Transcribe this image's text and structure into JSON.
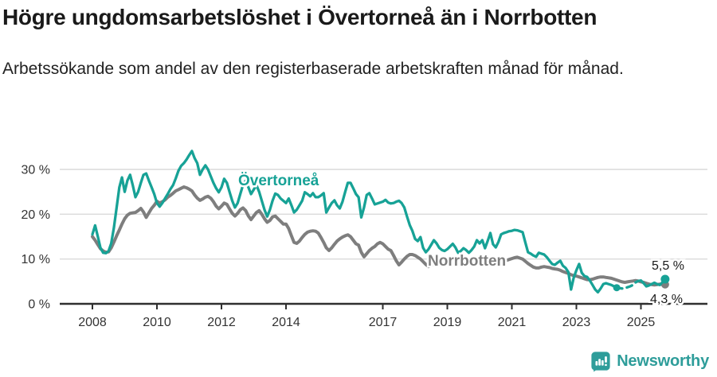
{
  "header": {
    "title": "Högre ungdomsarbetslöshet i Övertorneå än i Norrbotten",
    "subtitle": "Arbetssökande som andel av den registerbaserade arbetskraften månad för månad."
  },
  "logo": {
    "label": "Newsworthy",
    "color": "#2e9d9a",
    "icon": "newsworthy-speech-bubble-bar-chart-icon"
  },
  "colors": {
    "overtornea": "#17a296",
    "norrbotten": "#7e7e7e",
    "grid": "#dadada",
    "axis": "#2f2f2f",
    "tick_text": "#333333"
  },
  "chart_data": {
    "type": "line",
    "title": "Högre ungdomsarbetslöshet i Övertorneå än i Norrbotten",
    "xlabel": "",
    "ylabel": "",
    "unit": "%",
    "x_start": {
      "year": 2008,
      "month": 1
    },
    "x_end": {
      "year": 2025,
      "month": 10
    },
    "ylim": [
      0,
      35
    ],
    "grid": "horizontal",
    "legend_position": "inline-labels",
    "y_ticks": [
      {
        "value": 0,
        "label": "0 %"
      },
      {
        "value": 10,
        "label": "10 %"
      },
      {
        "value": 20,
        "label": "20 %"
      },
      {
        "value": 30,
        "label": "30 %"
      }
    ],
    "x_ticks": [
      {
        "year": 2008,
        "label": "2008"
      },
      {
        "year": 2010,
        "label": "2010"
      },
      {
        "year": 2012,
        "label": "2012"
      },
      {
        "year": 2014,
        "label": "2014"
      },
      {
        "year": 2017,
        "label": "2017"
      },
      {
        "year": 2019,
        "label": "2019"
      },
      {
        "year": 2021,
        "label": "2021"
      },
      {
        "year": 2023,
        "label": "2023"
      },
      {
        "year": 2025,
        "label": "2025"
      }
    ],
    "series": [
      {
        "name": "Norrbotten",
        "color": "#7e7e7e",
        "line_width": 4,
        "end_label": "4,3 %",
        "end_value": 4.3,
        "values": [
          15.0,
          14.2,
          13.2,
          12.3,
          11.8,
          11.5,
          11.6,
          12.5,
          13.8,
          15.2,
          16.5,
          17.8,
          19.0,
          19.8,
          20.2,
          20.3,
          20.4,
          20.8,
          21.3,
          20.5,
          19.3,
          20.3,
          21.3,
          22.0,
          22.9,
          22.5,
          22.8,
          23.2,
          23.8,
          24.2,
          24.7,
          25.2,
          25.5,
          25.8,
          26.1,
          25.9,
          25.6,
          25.2,
          24.3,
          23.6,
          23.1,
          23.4,
          23.8,
          24.0,
          23.6,
          22.8,
          21.8,
          21.2,
          21.8,
          22.5,
          22.2,
          21.2,
          20.2,
          19.6,
          20.2,
          21.0,
          21.4,
          20.8,
          19.6,
          18.8,
          19.6,
          20.4,
          20.8,
          20.0,
          19.0,
          18.2,
          18.6,
          19.4,
          19.6,
          19.0,
          18.4,
          17.8,
          17.8,
          16.8,
          15.2,
          13.7,
          13.5,
          14.0,
          14.8,
          15.5,
          16.0,
          16.2,
          16.3,
          16.2,
          15.8,
          14.8,
          13.7,
          12.5,
          11.9,
          12.5,
          13.3,
          14.0,
          14.5,
          14.9,
          15.2,
          15.4,
          15.0,
          14.2,
          13.4,
          13.1,
          11.5,
          10.5,
          11.2,
          11.9,
          12.4,
          12.8,
          13.4,
          13.7,
          13.4,
          12.8,
          12.2,
          11.9,
          10.8,
          9.6,
          8.7,
          9.3,
          10.0,
          10.6,
          11.0,
          11.0,
          10.8,
          10.4,
          10.0,
          9.4,
          8.8,
          8.3,
          8.6,
          9.1,
          9.5,
          9.8,
          10.0,
          9.8,
          9.6,
          9.4,
          9.2,
          9.0,
          8.8,
          8.7,
          8.8,
          9.0,
          9.2,
          9.3,
          9.4,
          9.5,
          9.6,
          9.5,
          9.4,
          10.1,
          10.3,
          10.2,
          10.0,
          9.8,
          9.7,
          9.6,
          9.7,
          9.9,
          10.1,
          10.3,
          10.4,
          10.2,
          10.0,
          9.5,
          9.0,
          8.6,
          8.2,
          8.0,
          8.0,
          8.2,
          8.3,
          8.2,
          8.1,
          7.9,
          7.8,
          7.7,
          7.5,
          7.2,
          7.0,
          6.8,
          6.5,
          6.3,
          6.2,
          6.0,
          5.8,
          5.6,
          5.4,
          5.4,
          5.5,
          5.7,
          5.9,
          6.0,
          6.0,
          5.9,
          5.8,
          5.7,
          5.5,
          5.3,
          5.1,
          4.9,
          4.8,
          4.9,
          5.0,
          5.1,
          5.2,
          5.1,
          4.9,
          4.8,
          4.6,
          4.4,
          4.3,
          4.2,
          4.3,
          4.4,
          4.3,
          4.3
        ]
      },
      {
        "name": "Övertorneå",
        "color": "#17a296",
        "line_width": 3.3,
        "end_label": "5,5 %",
        "end_value": 5.5,
        "dashed_range": [
          195,
          202
        ],
        "marker_index": 195,
        "values": [
          15.5,
          17.5,
          15.0,
          12.5,
          11.4,
          11.3,
          11.8,
          13.5,
          17.0,
          21.5,
          26.0,
          28.2,
          25.0,
          27.5,
          28.8,
          26.5,
          23.8,
          25.0,
          27.0,
          28.8,
          29.1,
          27.5,
          26.0,
          24.5,
          22.5,
          21.7,
          22.5,
          23.5,
          24.5,
          25.6,
          26.5,
          28.0,
          29.7,
          30.8,
          31.4,
          32.2,
          33.2,
          34.1,
          32.5,
          31.4,
          28.8,
          30.0,
          30.9,
          30.0,
          28.5,
          27.0,
          25.8,
          24.9,
          26.0,
          27.9,
          27.0,
          25.0,
          23.0,
          21.5,
          22.5,
          24.5,
          26.5,
          27.5,
          26.0,
          24.5,
          25.5,
          26.5,
          25.0,
          23.0,
          21.0,
          19.5,
          21.0,
          23.0,
          24.6,
          24.3,
          23.5,
          23.0,
          22.5,
          23.5,
          22.0,
          20.4,
          21.0,
          22.0,
          23.0,
          24.9,
          24.5,
          24.0,
          24.7,
          23.8,
          23.8,
          24.2,
          24.7,
          20.4,
          21.5,
          22.5,
          23.1,
          22.0,
          21.3,
          22.8,
          25.0,
          27.0,
          27.0,
          25.8,
          24.5,
          23.8,
          19.3,
          21.5,
          24.3,
          24.7,
          23.5,
          22.2,
          22.4,
          22.6,
          22.8,
          23.2,
          22.6,
          22.4,
          22.5,
          22.8,
          23.0,
          22.5,
          21.5,
          19.5,
          17.6,
          16.3,
          14.5,
          14.0,
          14.9,
          12.5,
          11.5,
          12.2,
          13.2,
          14.2,
          13.5,
          12.5,
          12.0,
          11.8,
          12.2,
          12.8,
          13.4,
          12.6,
          11.4,
          11.8,
          12.4,
          12.0,
          11.4,
          12.0,
          12.8,
          14.2,
          13.5,
          14.2,
          12.4,
          14.0,
          15.8,
          13.3,
          12.6,
          13.8,
          15.5,
          15.8,
          16.0,
          16.2,
          16.3,
          16.5,
          16.4,
          16.2,
          16.0,
          13.7,
          11.5,
          11.2,
          10.8,
          10.5,
          11.4,
          11.2,
          11.0,
          10.4,
          9.6,
          8.9,
          8.7,
          9.2,
          9.6,
          8.5,
          8.0,
          7.1,
          3.2,
          5.8,
          7.5,
          8.9,
          6.9,
          6.2,
          6.0,
          5.2,
          4.2,
          3.2,
          2.6,
          3.4,
          4.4,
          4.6,
          4.4,
          4.2,
          3.9,
          3.6,
          3.5,
          3.4,
          3.5,
          3.7,
          3.9,
          4.2,
          4.8,
          5.1,
          5.2,
          4.6,
          3.9,
          4.1,
          4.4,
          4.7,
          4.4,
          4.2,
          4.8,
          5.5
        ]
      }
    ]
  }
}
